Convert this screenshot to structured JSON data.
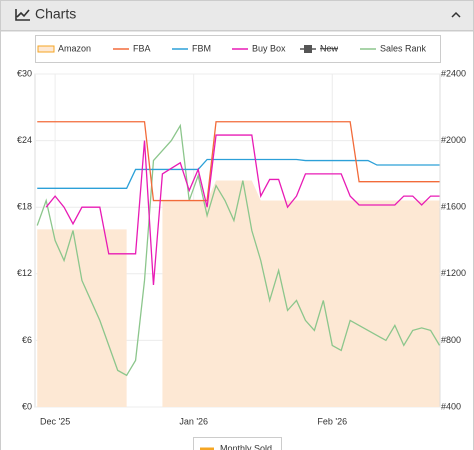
{
  "header": {
    "title": "Charts"
  },
  "chart_data": {
    "type": "line",
    "x": [
      -4,
      -2,
      0,
      2,
      4,
      6,
      8,
      10,
      12,
      14,
      16,
      18,
      20,
      22,
      24,
      26,
      28,
      30,
      32,
      34,
      36,
      38,
      40,
      42,
      44,
      46,
      48,
      50,
      52,
      54,
      56,
      58,
      60,
      62,
      64,
      66,
      68,
      70,
      72,
      74,
      76,
      78,
      80,
      82,
      84,
      86
    ],
    "xlim": [
      -4.5,
      86.1
    ],
    "xticks": [
      {
        "value": 0,
        "label": "Dec '25"
      },
      {
        "value": 31,
        "label": "Jan '26"
      },
      {
        "value": 62,
        "label": "Feb '26"
      }
    ],
    "ylim": [
      0,
      30
    ],
    "yticks": [
      {
        "value": 0,
        "label": "€0"
      },
      {
        "value": 6,
        "label": "€6"
      },
      {
        "value": 12,
        "label": "€12"
      },
      {
        "value": 18,
        "label": "€18"
      },
      {
        "value": 24,
        "label": "€24"
      },
      {
        "value": 30,
        "label": "€30"
      }
    ],
    "y2lim": [
      400,
      2400
    ],
    "y2ticks": [
      {
        "value": 400,
        "label": "#400"
      },
      {
        "value": 800,
        "label": "#800"
      },
      {
        "value": 1200,
        "label": "#1200"
      },
      {
        "value": 1600,
        "label": "#1600"
      },
      {
        "value": 2000,
        "label": "#2000"
      },
      {
        "value": 2400,
        "label": "#2400"
      }
    ],
    "grid": true,
    "series": [
      {
        "name": "Amazon",
        "color": "#f5a623",
        "fill": "#fde8d4",
        "area": true,
        "values": [
          16,
          16,
          16,
          16,
          16,
          16,
          16,
          16,
          16,
          16,
          16,
          null,
          null,
          null,
          18.6,
          18.6,
          18.6,
          18.6,
          18.6,
          18.6,
          20.4,
          20.4,
          20.4,
          20.4,
          20.4,
          18.6,
          18.6,
          18.6,
          18.6,
          18.6,
          18.6,
          18.6,
          18.6,
          18.6,
          18.6,
          18.6,
          18.6,
          18.6,
          18.6,
          18.6,
          18.6,
          18.6,
          18.6,
          18.6,
          18.6,
          18.6
        ]
      },
      {
        "name": "FBA",
        "color": "#f26b3a",
        "values": [
          25.7,
          25.7,
          25.7,
          25.7,
          25.7,
          25.7,
          25.7,
          25.7,
          25.7,
          25.7,
          25.7,
          25.7,
          25.7,
          18.6,
          18.6,
          18.6,
          18.6,
          18.6,
          18.6,
          18.6,
          25.7,
          25.7,
          25.7,
          25.7,
          25.7,
          25.7,
          25.7,
          25.7,
          25.7,
          25.7,
          25.7,
          25.7,
          25.7,
          25.7,
          25.7,
          25.7,
          20.3,
          20.3,
          20.3,
          20.3,
          20.3,
          20.3,
          20.3,
          20.3,
          20.3,
          20.3
        ]
      },
      {
        "name": "FBM",
        "color": "#2ca0d8",
        "values": [
          19.7,
          19.7,
          19.7,
          19.7,
          19.7,
          19.7,
          19.7,
          19.7,
          19.7,
          19.7,
          19.7,
          21.4,
          21.4,
          21.4,
          21.4,
          21.4,
          21.4,
          21.4,
          21.4,
          22.3,
          22.3,
          22.3,
          22.3,
          22.3,
          22.3,
          22.3,
          22.3,
          22.3,
          22.3,
          22.3,
          22.2,
          22.2,
          22.2,
          22.2,
          22.2,
          22.2,
          22.2,
          22.2,
          21.8,
          21.8,
          21.8,
          21.8,
          21.8,
          21.8,
          21.8,
          21.8
        ]
      },
      {
        "name": "Buy Box",
        "color": "#e81bb5",
        "values": [
          null,
          18,
          19,
          18,
          16.5,
          18,
          18,
          18,
          13.8,
          13.8,
          13.8,
          13.8,
          24,
          11,
          21,
          21.5,
          22,
          19.5,
          21.4,
          18,
          24.5,
          24.5,
          24.5,
          24.5,
          24.5,
          19,
          20.5,
          20.5,
          18,
          19,
          21,
          21,
          21,
          21,
          21,
          19,
          18.2,
          18.2,
          18.2,
          18.2,
          18.2,
          19,
          19,
          18.2,
          19,
          19
        ]
      },
      {
        "name": "New",
        "color": "#555555",
        "hidden": true
      },
      {
        "name": "Sales Rank",
        "color": "#8cc68c",
        "axis": "y2",
        "values": [
          1490,
          1640,
          1400,
          1280,
          1460,
          1160,
          1040,
          920,
          770,
          620,
          590,
          680,
          1160,
          1880,
          1940,
          2000,
          2090,
          1640,
          1790,
          1550,
          1730,
          1640,
          1520,
          1760,
          1460,
          1280,
          1040,
          1220,
          980,
          1040,
          920,
          860,
          1040,
          770,
          740,
          920,
          890,
          860,
          830,
          800,
          890,
          770,
          860,
          875,
          860,
          770
        ]
      }
    ],
    "secondary_legend": [
      "Monthly Sold"
    ]
  }
}
